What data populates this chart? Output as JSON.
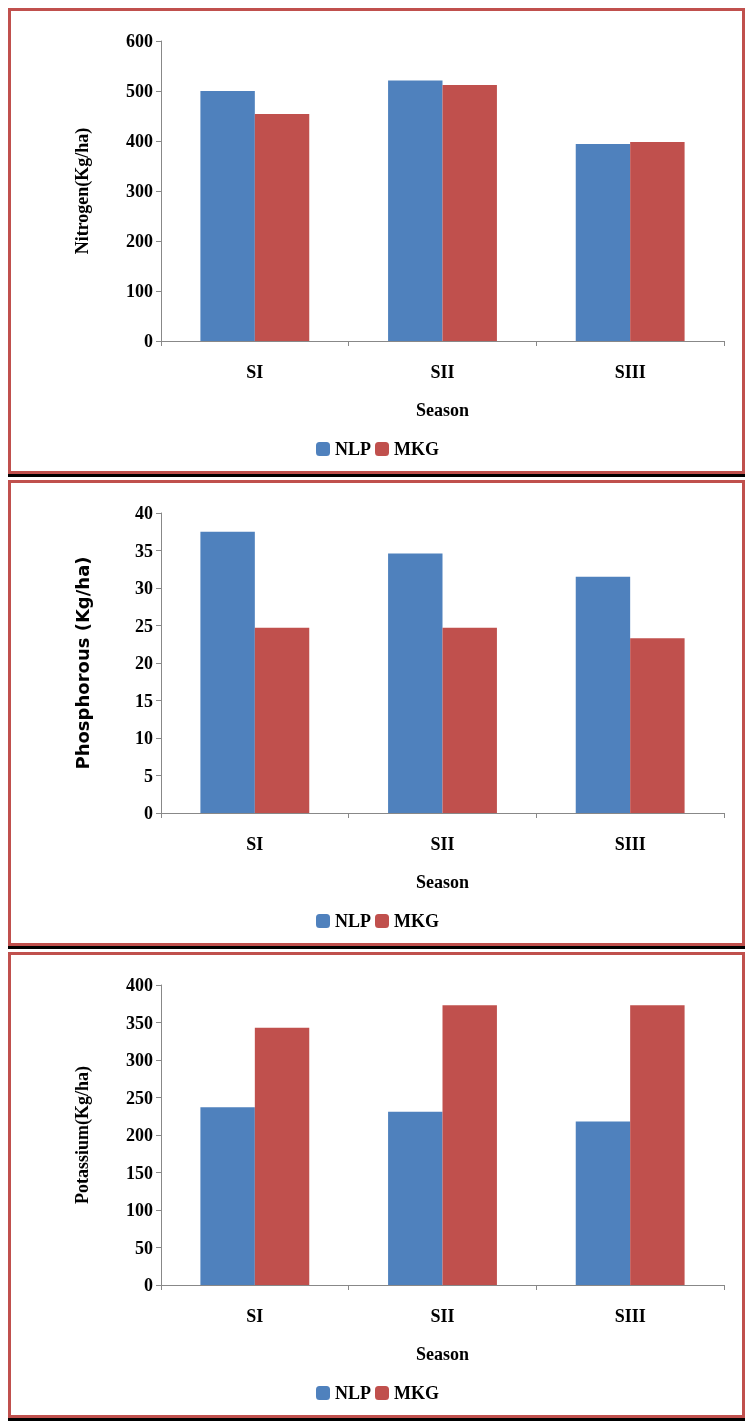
{
  "chart_data": [
    {
      "type": "bar",
      "categories": [
        "SI",
        "SII",
        "SIII"
      ],
      "xlabel": "Season",
      "ylabel": "Nitrogen(Kg/ha)",
      "ylim": [
        0,
        600
      ],
      "yticks": [
        0,
        100,
        200,
        300,
        400,
        500,
        600
      ],
      "grid": false,
      "legend": "bottom",
      "series": [
        {
          "name": "NLP",
          "color": "#4f81bd",
          "values": [
            500,
            521,
            394
          ]
        },
        {
          "name": "MKG",
          "color": "#c0504d",
          "values": [
            454,
            512,
            398
          ]
        }
      ]
    },
    {
      "type": "bar",
      "categories": [
        "SI",
        "SII",
        "SIII"
      ],
      "xlabel": "Season",
      "ylabel": "Phosphorous (Kg/ha)",
      "ylim": [
        0,
        40
      ],
      "yticks": [
        0,
        5,
        10,
        15,
        20,
        25,
        30,
        35,
        40
      ],
      "grid": false,
      "legend": "bottom",
      "series": [
        {
          "name": "NLP",
          "color": "#4f81bd",
          "values": [
            37.5,
            34.6,
            31.5
          ]
        },
        {
          "name": "MKG",
          "color": "#c0504d",
          "values": [
            24.7,
            24.7,
            23.3
          ]
        }
      ]
    },
    {
      "type": "bar",
      "categories": [
        "SI",
        "SII",
        "SIII"
      ],
      "xlabel": "Season",
      "ylabel": "Potassium(Kg/ha)",
      "ylim": [
        0,
        400
      ],
      "yticks": [
        0,
        50,
        100,
        150,
        200,
        250,
        300,
        350,
        400
      ],
      "grid": false,
      "legend": "bottom",
      "series": [
        {
          "name": "NLP",
          "color": "#4f81bd",
          "values": [
            237,
            231,
            218
          ]
        },
        {
          "name": "MKG",
          "color": "#c0504d",
          "values": [
            343,
            373,
            373
          ]
        }
      ]
    }
  ]
}
